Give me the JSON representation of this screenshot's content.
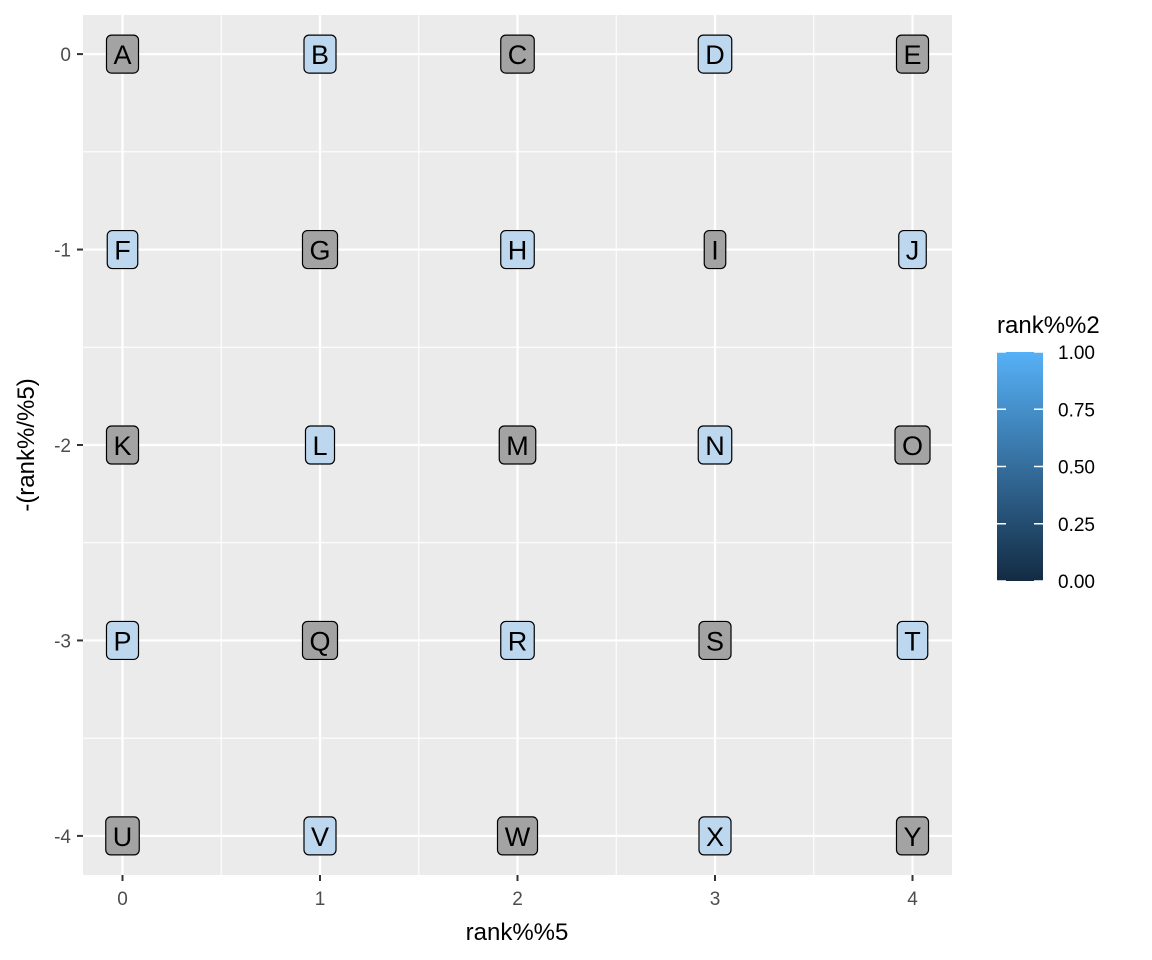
{
  "chart_data": {
    "type": "scatter",
    "geom": "label",
    "xlabel": "rank%%5",
    "ylabel": "-(rank%/%5)",
    "xlim": [
      -0.2,
      4.2
    ],
    "ylim": [
      -4.2,
      0.2
    ],
    "x_ticks": [
      0,
      1,
      2,
      3,
      4
    ],
    "y_ticks": [
      0,
      -1,
      -2,
      -3,
      -4
    ],
    "grid": true,
    "fill_legend": {
      "title": "rank%%2",
      "ticks": [
        1.0,
        0.75,
        0.5,
        0.25,
        0.0
      ],
      "tick_labels": [
        "1.00",
        "0.75",
        "0.50",
        "0.25",
        "0.00"
      ],
      "low_color": "#132B43",
      "high_color": "#56B1F7",
      "placement": "right"
    },
    "points": [
      {
        "label": "A",
        "x": 0,
        "y": 0,
        "fill": 0
      },
      {
        "label": "B",
        "x": 1,
        "y": 0,
        "fill": 1
      },
      {
        "label": "C",
        "x": 2,
        "y": 0,
        "fill": 0
      },
      {
        "label": "D",
        "x": 3,
        "y": 0,
        "fill": 1
      },
      {
        "label": "E",
        "x": 4,
        "y": 0,
        "fill": 0
      },
      {
        "label": "F",
        "x": 0,
        "y": -1,
        "fill": 1
      },
      {
        "label": "G",
        "x": 1,
        "y": -1,
        "fill": 0
      },
      {
        "label": "H",
        "x": 2,
        "y": -1,
        "fill": 1
      },
      {
        "label": "I",
        "x": 3,
        "y": -1,
        "fill": 0
      },
      {
        "label": "J",
        "x": 4,
        "y": -1,
        "fill": 1
      },
      {
        "label": "K",
        "x": 0,
        "y": -2,
        "fill": 0
      },
      {
        "label": "L",
        "x": 1,
        "y": -2,
        "fill": 1
      },
      {
        "label": "M",
        "x": 2,
        "y": -2,
        "fill": 0
      },
      {
        "label": "N",
        "x": 3,
        "y": -2,
        "fill": 1
      },
      {
        "label": "O",
        "x": 4,
        "y": -2,
        "fill": 0
      },
      {
        "label": "P",
        "x": 0,
        "y": -3,
        "fill": 1
      },
      {
        "label": "Q",
        "x": 1,
        "y": -3,
        "fill": 0
      },
      {
        "label": "R",
        "x": 2,
        "y": -3,
        "fill": 1
      },
      {
        "label": "S",
        "x": 3,
        "y": -3,
        "fill": 0
      },
      {
        "label": "T",
        "x": 4,
        "y": -3,
        "fill": 1
      },
      {
        "label": "U",
        "x": 0,
        "y": -4,
        "fill": 0
      },
      {
        "label": "V",
        "x": 1,
        "y": -4,
        "fill": 1
      },
      {
        "label": "W",
        "x": 2,
        "y": -4,
        "fill": 0
      },
      {
        "label": "X",
        "x": 3,
        "y": -4,
        "fill": 1
      },
      {
        "label": "Y",
        "x": 4,
        "y": -4,
        "fill": 0
      }
    ],
    "colors": {
      "panel_background": "#EBEBEB",
      "grid_line": "#FFFFFF",
      "label_fill_0": "#A3A3A3",
      "label_fill_1": "#BDD7EE"
    }
  }
}
